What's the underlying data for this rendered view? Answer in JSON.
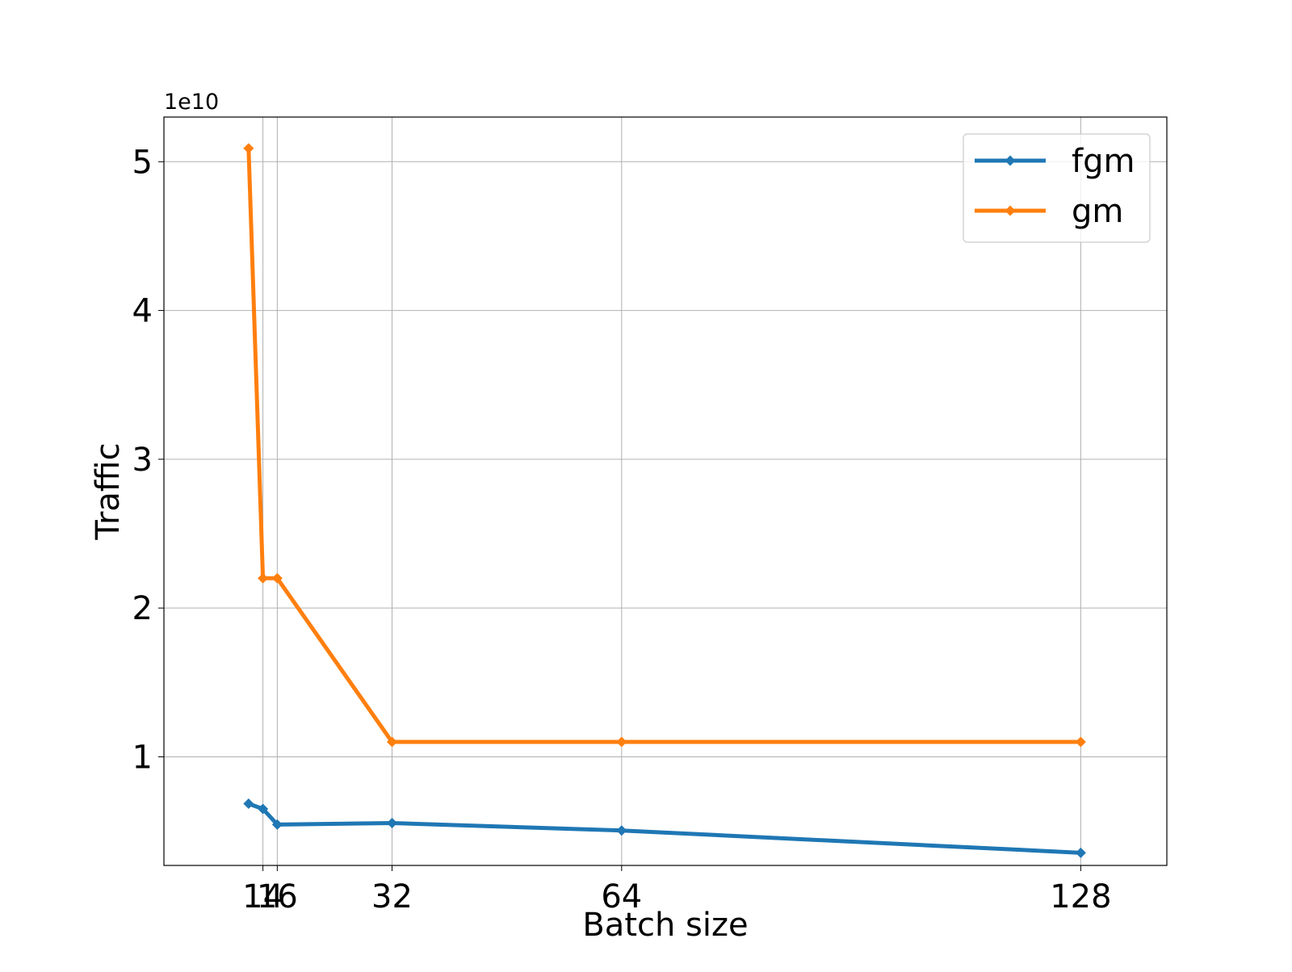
{
  "chart_data": {
    "type": "line",
    "x": [
      12,
      14,
      16,
      32,
      64,
      128
    ],
    "series": [
      {
        "name": "fgm",
        "color": "#1f77b4",
        "values": [
          6850000000.0,
          6500000000.0,
          5450000000.0,
          5550000000.0,
          5050000000.0,
          3550000000.0
        ]
      },
      {
        "name": "gm",
        "color": "#ff7f0e",
        "values": [
          50900000000.0,
          22000000000.0,
          22000000000.0,
          11000000000.0,
          11000000000.0,
          11000000000.0
        ]
      }
    ],
    "xticks": [
      {
        "value": 14,
        "label": "14"
      },
      {
        "value": 16,
        "label": "16"
      },
      {
        "value": 32,
        "label": "32"
      },
      {
        "value": 64,
        "label": "64"
      },
      {
        "value": 128,
        "label": "128"
      }
    ],
    "yticks": [
      {
        "value": 10000000000.0,
        "label": "1"
      },
      {
        "value": 20000000000.0,
        "label": "2"
      },
      {
        "value": 30000000000.0,
        "label": "3"
      },
      {
        "value": 40000000000.0,
        "label": "4"
      },
      {
        "value": 50000000000.0,
        "label": "5"
      }
    ],
    "scale_label": "1e10",
    "xlabel": "Batch size",
    "ylabel": "Traffic",
    "xlim": [
      0.2,
      140
    ],
    "ylim": [
      2700000000.0,
      53000000000.0
    ],
    "grid": true,
    "legend_position": "top-right",
    "marker": "diamond"
  }
}
